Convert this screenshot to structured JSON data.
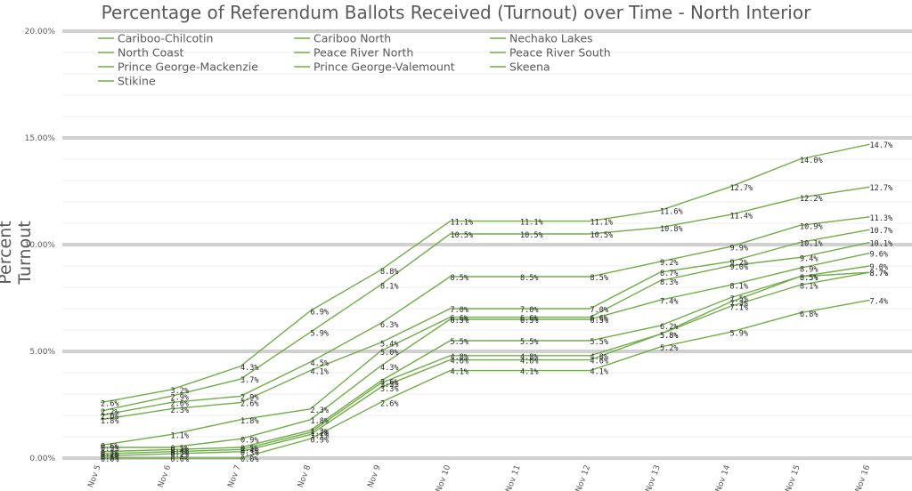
{
  "chart_data": {
    "type": "line",
    "title": "Percentage of Referendum Ballots Received (Turnout) over Time - North Interior",
    "xlabel": "",
    "ylabel": "Percent Turnout",
    "ylim": [
      0,
      20
    ],
    "yticks": [
      "0.00%",
      "5.00%",
      "10.00%",
      "15.00%",
      "20.00%"
    ],
    "grid": "horizontal",
    "legend": "top-left",
    "line_color": "#70ad47",
    "categories": [
      "Nov 5",
      "Nov 6",
      "Nov 7",
      "Nov 8",
      "Nov 9",
      "Nov 10",
      "Nov 11",
      "Nov 12",
      "Nov 13",
      "Nov 14",
      "Nov 15",
      "Nov 16"
    ],
    "series": [
      {
        "name": "Cariboo-Chilcotin",
        "values": [
          2.6,
          3.2,
          4.3,
          6.9,
          8.8,
          11.1,
          11.1,
          11.1,
          11.6,
          12.7,
          14.0,
          14.7
        ]
      },
      {
        "name": "Cariboo North",
        "values": [
          2.2,
          2.9,
          3.7,
          5.9,
          8.1,
          10.5,
          10.5,
          10.5,
          10.8,
          11.4,
          12.2,
          12.7
        ]
      },
      {
        "name": "Nechako Lakes",
        "values": [
          2.0,
          2.6,
          2.9,
          4.5,
          6.3,
          8.5,
          8.5,
          8.5,
          9.2,
          9.9,
          10.9,
          11.3
        ]
      },
      {
        "name": "North Coast",
        "values": [
          1.8,
          2.3,
          2.6,
          4.1,
          5.4,
          7.0,
          7.0,
          7.0,
          8.7,
          9.2,
          10.1,
          10.7
        ]
      },
      {
        "name": "Peace River North",
        "values": [
          0.6,
          1.1,
          1.8,
          2.3,
          5.0,
          6.6,
          6.6,
          6.6,
          8.3,
          9.0,
          9.4,
          10.1
        ]
      },
      {
        "name": "Peace River South",
        "values": [
          0.5,
          0.5,
          0.9,
          1.8,
          4.3,
          6.5,
          6.5,
          6.5,
          7.4,
          8.1,
          8.9,
          9.6
        ]
      },
      {
        "name": "Prince George-Mackenzie",
        "values": [
          0.3,
          0.4,
          0.5,
          1.3,
          3.6,
          5.5,
          5.5,
          5.5,
          6.2,
          7.5,
          8.5,
          9.0
        ]
      },
      {
        "name": "Prince George-Valemount",
        "values": [
          0.2,
          0.3,
          0.4,
          1.2,
          3.5,
          4.8,
          4.8,
          4.8,
          5.8,
          7.3,
          8.5,
          8.7
        ]
      },
      {
        "name": "Skeena",
        "values": [
          0.1,
          0.2,
          0.3,
          1.1,
          3.3,
          4.6,
          4.6,
          4.6,
          5.8,
          7.1,
          8.1,
          8.7
        ]
      },
      {
        "name": "Stikine",
        "values": [
          0.0,
          0.0,
          0.0,
          0.9,
          2.6,
          4.1,
          4.1,
          4.1,
          5.2,
          5.9,
          6.8,
          7.4
        ]
      }
    ],
    "data_labels": [
      [
        "2.6%",
        "3.2%",
        "4.3%",
        "6.9%",
        "8.8%",
        "11.1%",
        "11.1%",
        "11.1%",
        "11.6%",
        "12.7%",
        "14.0%",
        "14.7%"
      ],
      [
        "2.2%",
        "2.9%",
        "3.7%",
        "5.9%",
        "8.1%",
        "10.5%",
        "10.5%",
        "10.5%",
        "10.8%",
        "11.4%",
        "12.2%",
        "12.7%"
      ],
      [
        "2.0%",
        "2.6%",
        "2.9%",
        "4.5%",
        "6.3%",
        "8.5%",
        "8.5%",
        "8.5%",
        "9.2%",
        "9.9%",
        "10.9%",
        "11.3%"
      ],
      [
        "1.8%",
        "2.3%",
        "2.6%",
        "4.1%",
        "5.4%",
        "7.0%",
        "7.0%",
        "7.0%",
        "8.7%",
        "9.2%",
        "10.1%",
        "10.7%"
      ],
      [
        "0.6%",
        "1.1%",
        "1.8%",
        "2.3%",
        "5.0%",
        "6.6%",
        "6.6%",
        "6.6%",
        "8.3%",
        "9.0%",
        "9.4%",
        "10.1%"
      ],
      [
        "0.5%",
        "0.5%",
        "0.9%",
        "1.8%",
        "4.3%",
        "6.5%",
        "6.5%",
        "6.5%",
        "7.4%",
        "8.1%",
        "8.9%",
        "9.6%"
      ],
      [
        "0.3%",
        "0.4%",
        "0.5%",
        "1.3%",
        "3.6%",
        "5.5%",
        "5.5%",
        "5.5%",
        "6.2%",
        "7.5%",
        "8.5%",
        "9.0%"
      ],
      [
        "0.2%",
        "0.3%",
        "0.4%",
        "1.2%",
        "3.5%",
        "4.8%",
        "4.8%",
        "4.8%",
        "5.8%",
        "7.3%",
        "8.5%",
        "8.7%"
      ],
      [
        "0.1%",
        "0.2%",
        "0.3%",
        "1.1%",
        "3.3%",
        "4.6%",
        "4.6%",
        "4.6%",
        "5.8%",
        "7.1%",
        "8.1%",
        "8.7%"
      ],
      [
        "0.0%",
        "0.0%",
        "0.0%",
        "0.9%",
        "2.6%",
        "4.1%",
        "4.1%",
        "4.1%",
        "5.2%",
        "5.9%",
        "6.8%",
        "7.4%"
      ]
    ]
  }
}
